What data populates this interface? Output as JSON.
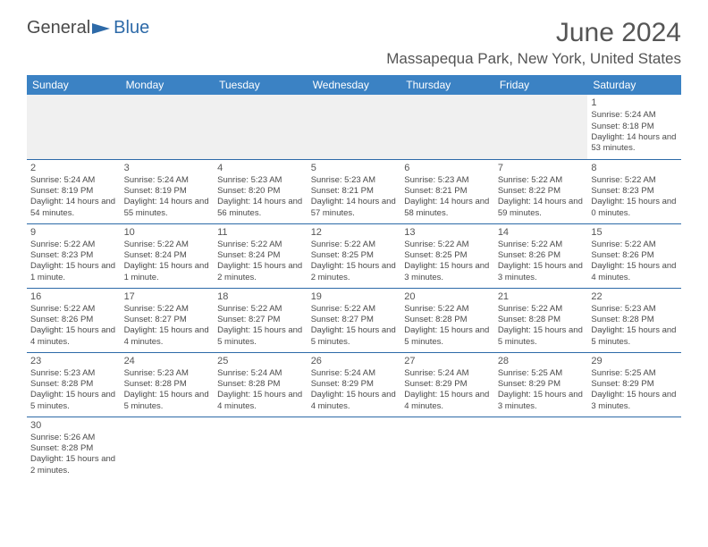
{
  "logo": {
    "general": "General",
    "blue": "Blue"
  },
  "title": "June 2024",
  "location": "Massapequa Park, New York, United States",
  "weekdays": [
    "Sunday",
    "Monday",
    "Tuesday",
    "Wednesday",
    "Thursday",
    "Friday",
    "Saturday"
  ],
  "colors": {
    "header_bg": "#3b82c4",
    "header_text": "#ffffff",
    "border": "#2d6aa8",
    "text": "#4a4a4a",
    "title": "#555555",
    "empty_bg": "#f0f0f0"
  },
  "font": {
    "family": "Arial",
    "cell_size": 9.5,
    "daynum_size": 11,
    "title_size": 30,
    "location_size": 17,
    "header_size": 12
  },
  "layout": {
    "cols": 7,
    "rows": 6,
    "first_day_col": 6,
    "days_in_month": 30
  },
  "days": {
    "1": {
      "sunrise": "5:24 AM",
      "sunset": "8:18 PM",
      "daylight": "14 hours and 53 minutes."
    },
    "2": {
      "sunrise": "5:24 AM",
      "sunset": "8:19 PM",
      "daylight": "14 hours and 54 minutes."
    },
    "3": {
      "sunrise": "5:24 AM",
      "sunset": "8:19 PM",
      "daylight": "14 hours and 55 minutes."
    },
    "4": {
      "sunrise": "5:23 AM",
      "sunset": "8:20 PM",
      "daylight": "14 hours and 56 minutes."
    },
    "5": {
      "sunrise": "5:23 AM",
      "sunset": "8:21 PM",
      "daylight": "14 hours and 57 minutes."
    },
    "6": {
      "sunrise": "5:23 AM",
      "sunset": "8:21 PM",
      "daylight": "14 hours and 58 minutes."
    },
    "7": {
      "sunrise": "5:22 AM",
      "sunset": "8:22 PM",
      "daylight": "14 hours and 59 minutes."
    },
    "8": {
      "sunrise": "5:22 AM",
      "sunset": "8:23 PM",
      "daylight": "15 hours and 0 minutes."
    },
    "9": {
      "sunrise": "5:22 AM",
      "sunset": "8:23 PM",
      "daylight": "15 hours and 1 minute."
    },
    "10": {
      "sunrise": "5:22 AM",
      "sunset": "8:24 PM",
      "daylight": "15 hours and 1 minute."
    },
    "11": {
      "sunrise": "5:22 AM",
      "sunset": "8:24 PM",
      "daylight": "15 hours and 2 minutes."
    },
    "12": {
      "sunrise": "5:22 AM",
      "sunset": "8:25 PM",
      "daylight": "15 hours and 2 minutes."
    },
    "13": {
      "sunrise": "5:22 AM",
      "sunset": "8:25 PM",
      "daylight": "15 hours and 3 minutes."
    },
    "14": {
      "sunrise": "5:22 AM",
      "sunset": "8:26 PM",
      "daylight": "15 hours and 3 minutes."
    },
    "15": {
      "sunrise": "5:22 AM",
      "sunset": "8:26 PM",
      "daylight": "15 hours and 4 minutes."
    },
    "16": {
      "sunrise": "5:22 AM",
      "sunset": "8:26 PM",
      "daylight": "15 hours and 4 minutes."
    },
    "17": {
      "sunrise": "5:22 AM",
      "sunset": "8:27 PM",
      "daylight": "15 hours and 4 minutes."
    },
    "18": {
      "sunrise": "5:22 AM",
      "sunset": "8:27 PM",
      "daylight": "15 hours and 5 minutes."
    },
    "19": {
      "sunrise": "5:22 AM",
      "sunset": "8:27 PM",
      "daylight": "15 hours and 5 minutes."
    },
    "20": {
      "sunrise": "5:22 AM",
      "sunset": "8:28 PM",
      "daylight": "15 hours and 5 minutes."
    },
    "21": {
      "sunrise": "5:22 AM",
      "sunset": "8:28 PM",
      "daylight": "15 hours and 5 minutes."
    },
    "22": {
      "sunrise": "5:23 AM",
      "sunset": "8:28 PM",
      "daylight": "15 hours and 5 minutes."
    },
    "23": {
      "sunrise": "5:23 AM",
      "sunset": "8:28 PM",
      "daylight": "15 hours and 5 minutes."
    },
    "24": {
      "sunrise": "5:23 AM",
      "sunset": "8:28 PM",
      "daylight": "15 hours and 5 minutes."
    },
    "25": {
      "sunrise": "5:24 AM",
      "sunset": "8:28 PM",
      "daylight": "15 hours and 4 minutes."
    },
    "26": {
      "sunrise": "5:24 AM",
      "sunset": "8:29 PM",
      "daylight": "15 hours and 4 minutes."
    },
    "27": {
      "sunrise": "5:24 AM",
      "sunset": "8:29 PM",
      "daylight": "15 hours and 4 minutes."
    },
    "28": {
      "sunrise": "5:25 AM",
      "sunset": "8:29 PM",
      "daylight": "15 hours and 3 minutes."
    },
    "29": {
      "sunrise": "5:25 AM",
      "sunset": "8:29 PM",
      "daylight": "15 hours and 3 minutes."
    },
    "30": {
      "sunrise": "5:26 AM",
      "sunset": "8:28 PM",
      "daylight": "15 hours and 2 minutes."
    }
  },
  "labels": {
    "sunrise_prefix": "Sunrise: ",
    "sunset_prefix": "Sunset: ",
    "daylight_prefix": "Daylight: "
  }
}
